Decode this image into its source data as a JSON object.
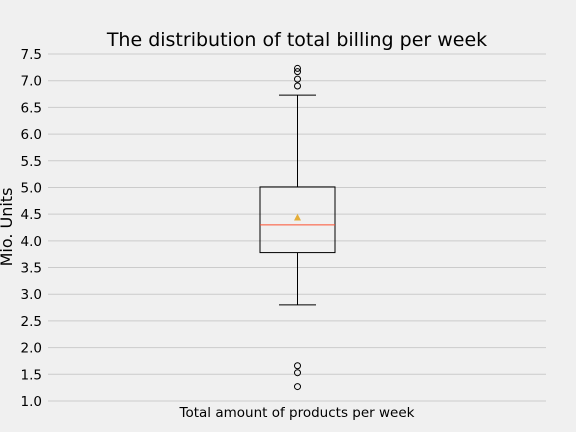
{
  "chart_data": {
    "type": "box",
    "title": "The distribution of total billing per week",
    "xlabel": "",
    "ylabel": "Mio. Units",
    "categories": [
      "Total amount of products per week"
    ],
    "ylim": [
      1.0,
      7.5
    ],
    "yticks": [
      "1.0",
      "1.5",
      "2.0",
      "2.5",
      "3.0",
      "3.5",
      "4.0",
      "4.5",
      "5.0",
      "5.5",
      "6.0",
      "6.5",
      "7.0",
      "7.5"
    ],
    "grid": "horizontal",
    "box": {
      "whisker_low": 2.8,
      "q1": 3.78,
      "median": 4.3,
      "mean": 4.44,
      "q3": 5.01,
      "whisker_high": 6.73
    },
    "outliers": [
      1.27,
      1.53,
      1.66,
      6.9,
      7.03,
      7.17,
      7.23
    ],
    "colors": {
      "background": "#f0f0f0",
      "grid": "#cbcbcb",
      "box": "#000000",
      "median": "#fc4f30",
      "mean": "#e5ae38"
    }
  }
}
